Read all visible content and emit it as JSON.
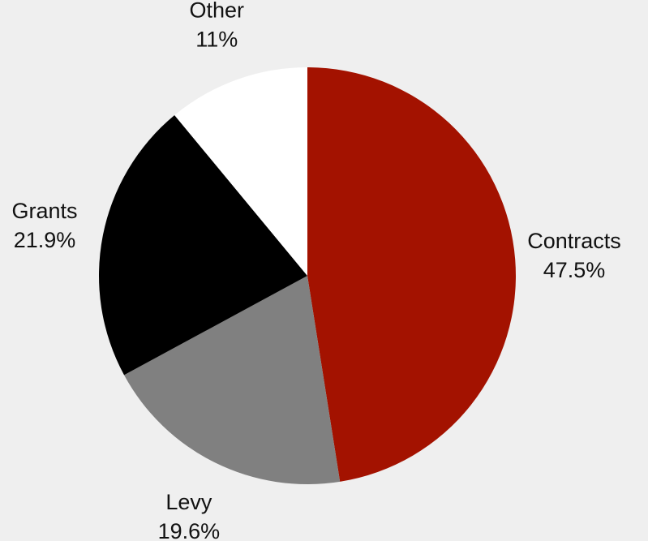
{
  "chart_data": {
    "type": "pie",
    "title": "",
    "start_angle": "12 o'clock",
    "direction": "clockwise",
    "legend": "none",
    "slices": [
      {
        "label": "Contracts",
        "value": 47.5,
        "value_label": "47.5%",
        "color": "#a31200"
      },
      {
        "label": "Levy",
        "value": 19.6,
        "value_label": "19.6%",
        "color": "#808080"
      },
      {
        "label": "Grants",
        "value": 21.9,
        "value_label": "21.9%",
        "color": "#000000"
      },
      {
        "label": "Other",
        "value": 11,
        "value_label": "11%",
        "color": "#ffffff"
      }
    ]
  }
}
